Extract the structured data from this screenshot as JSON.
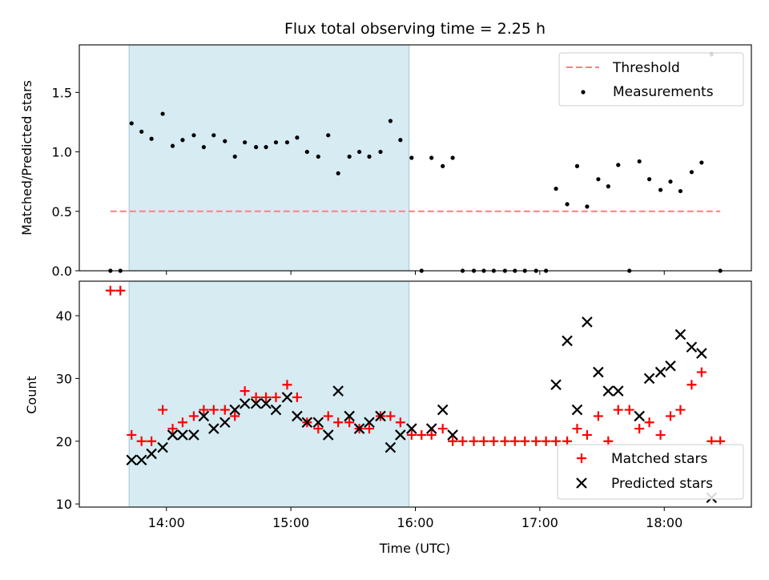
{
  "chart_data": [
    {
      "type": "scatter",
      "panel": "top",
      "title": "Flux total observing time = 2.25 h",
      "xlabel": "",
      "ylabel": "Matched/Predicted stars",
      "xlim": [
        13.3,
        18.7
      ],
      "ylim": [
        0.0,
        1.9
      ],
      "yticks": [
        0.0,
        0.5,
        1.0,
        1.5
      ],
      "ytick_labels": [
        "0.0",
        "0.5",
        "1.0",
        "1.5"
      ],
      "xticks": [
        14,
        15,
        16,
        17,
        18
      ],
      "highlight_span": [
        13.7,
        15.95
      ],
      "legend_position": "top-right",
      "threshold": {
        "name": "Threshold",
        "value": 0.5,
        "x_range": [
          13.55,
          18.45
        ],
        "color": "#ff7f7f"
      },
      "series": [
        {
          "name": "Measurements",
          "color": "#000000",
          "x": [
            13.55,
            13.63,
            13.72,
            13.8,
            13.88,
            13.97,
            14.05,
            14.13,
            14.22,
            14.3,
            14.38,
            14.47,
            14.55,
            14.63,
            14.72,
            14.8,
            14.88,
            14.97,
            15.05,
            15.13,
            15.22,
            15.3,
            15.38,
            15.47,
            15.55,
            15.63,
            15.72,
            15.8,
            15.88,
            15.97,
            16.05,
            16.13,
            16.22,
            16.3,
            16.38,
            16.47,
            16.55,
            16.63,
            16.72,
            16.8,
            16.88,
            16.97,
            17.05,
            17.13,
            17.22,
            17.3,
            17.38,
            17.47,
            17.55,
            17.63,
            17.72,
            17.8,
            17.88,
            17.97,
            18.05,
            18.13,
            18.22,
            18.3,
            18.38,
            18.45
          ],
          "y": [
            0.0,
            0.0,
            1.24,
            1.17,
            1.11,
            1.32,
            1.05,
            1.1,
            1.14,
            1.04,
            1.14,
            1.09,
            0.96,
            1.08,
            1.04,
            1.04,
            1.08,
            1.08,
            1.12,
            1.0,
            0.96,
            1.14,
            0.82,
            0.96,
            1.0,
            0.96,
            1.0,
            1.26,
            1.1,
            0.95,
            0.0,
            0.95,
            0.88,
            0.95,
            0.0,
            0.0,
            0.0,
            0.0,
            0.0,
            0.0,
            0.0,
            0.0,
            0.0,
            0.69,
            0.56,
            0.88,
            0.54,
            0.77,
            0.71,
            0.89,
            0.0,
            0.92,
            0.77,
            0.68,
            0.75,
            0.67,
            0.83,
            0.91,
            1.82,
            0.0
          ]
        }
      ]
    },
    {
      "type": "scatter",
      "panel": "bottom",
      "xlabel": "Time (UTC)",
      "ylabel": "Count",
      "xlim": [
        13.3,
        18.7
      ],
      "ylim": [
        9.5,
        45.5
      ],
      "yticks": [
        10,
        20,
        30,
        40
      ],
      "ytick_labels": [
        "10",
        "20",
        "30",
        "40"
      ],
      "xticks": [
        14,
        15,
        16,
        17,
        18
      ],
      "xtick_labels": [
        "14:00",
        "15:00",
        "16:00",
        "17:00",
        "18:00"
      ],
      "highlight_span": [
        13.7,
        15.95
      ],
      "legend_position": "bottom-right",
      "series": [
        {
          "name": "Matched stars",
          "marker": "+",
          "color": "#ff0000",
          "x": [
            13.55,
            13.63,
            13.72,
            13.8,
            13.88,
            13.97,
            14.05,
            14.13,
            14.22,
            14.3,
            14.38,
            14.47,
            14.55,
            14.63,
            14.72,
            14.8,
            14.88,
            14.97,
            15.05,
            15.13,
            15.22,
            15.3,
            15.38,
            15.47,
            15.55,
            15.63,
            15.72,
            15.8,
            15.88,
            15.97,
            16.05,
            16.13,
            16.22,
            16.3,
            16.38,
            16.47,
            16.55,
            16.63,
            16.72,
            16.8,
            16.88,
            16.97,
            17.05,
            17.13,
            17.22,
            17.3,
            17.38,
            17.47,
            17.55,
            17.63,
            17.72,
            17.8,
            17.88,
            17.97,
            18.05,
            18.13,
            18.22,
            18.3,
            18.38,
            18.45
          ],
          "y": [
            44,
            44,
            21,
            20,
            20,
            25,
            22,
            23,
            24,
            25,
            25,
            25,
            24,
            28,
            27,
            27,
            27,
            29,
            27,
            23,
            22,
            24,
            23,
            23,
            22,
            22,
            24,
            24,
            23,
            21,
            21,
            21,
            22,
            20,
            20,
            20,
            20,
            20,
            20,
            20,
            20,
            20,
            20,
            20,
            20,
            22,
            21,
            24,
            20,
            25,
            25,
            22,
            23,
            21,
            24,
            25,
            29,
            31,
            20,
            20
          ]
        },
        {
          "name": "Predicted stars",
          "marker": "x",
          "color": "#000000",
          "x": [
            13.72,
            13.8,
            13.88,
            13.97,
            14.05,
            14.13,
            14.22,
            14.3,
            14.38,
            14.47,
            14.55,
            14.63,
            14.72,
            14.8,
            14.88,
            14.97,
            15.05,
            15.13,
            15.22,
            15.3,
            15.38,
            15.47,
            15.55,
            15.63,
            15.72,
            15.8,
            15.88,
            15.97,
            16.13,
            16.22,
            16.3,
            17.13,
            17.22,
            17.3,
            17.38,
            17.47,
            17.55,
            17.63,
            17.8,
            17.88,
            17.97,
            18.05,
            18.13,
            18.22,
            18.3,
            18.38
          ],
          "y": [
            17,
            17,
            18,
            19,
            21,
            21,
            21,
            24,
            22,
            23,
            25,
            26,
            26,
            26,
            25,
            27,
            24,
            23,
            23,
            21,
            28,
            24,
            22,
            23,
            24,
            19,
            21,
            22,
            22,
            25,
            21,
            29,
            36,
            25,
            39,
            31,
            28,
            28,
            24,
            30,
            31,
            32,
            37,
            35,
            34,
            11
          ]
        }
      ]
    }
  ]
}
